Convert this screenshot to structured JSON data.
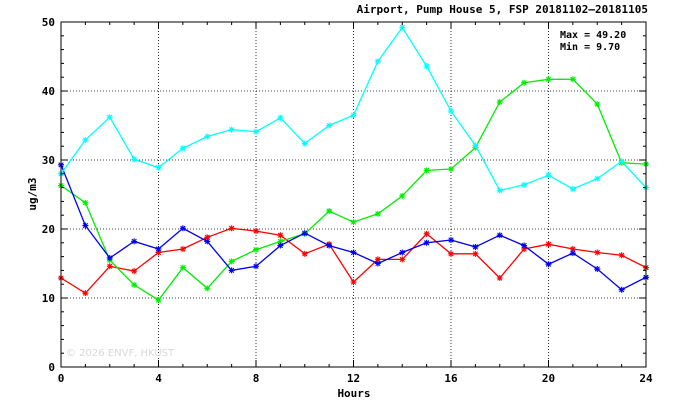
{
  "chart_data": {
    "type": "line",
    "title": "Airport, Pump House 5, FSP 20181102–20181105",
    "xlabel": "Hours",
    "ylabel": "ug/m3",
    "xlim": [
      0,
      24
    ],
    "ylim": [
      0,
      50
    ],
    "xticks": [
      0,
      4,
      8,
      12,
      16,
      20,
      24
    ],
    "yticks": [
      0,
      10,
      20,
      30,
      40,
      50
    ],
    "grid": true,
    "annotations": {
      "max_label": "Max = 49.20",
      "min_label": "Min =  9.70"
    },
    "watermark": "© 2026  ENVF, HKUST",
    "x": [
      0,
      1,
      2,
      3,
      4,
      5,
      6,
      7,
      8,
      9,
      10,
      11,
      12,
      13,
      14,
      15,
      16,
      17,
      18,
      19,
      20,
      21,
      22,
      23,
      24
    ],
    "series": [
      {
        "color": "#ff0000",
        "values": [
          12.9,
          10.7,
          14.6,
          13.9,
          16.6,
          17.1,
          18.8,
          20.1,
          19.7,
          19.1,
          16.4,
          17.8,
          12.3,
          15.6,
          15.6,
          19.3,
          16.4,
          16.4,
          12.9,
          17.1,
          17.8,
          17.1,
          16.6,
          16.2,
          14.4
        ]
      },
      {
        "color": "#00ee00",
        "values": [
          26.3,
          23.8,
          15.5,
          11.9,
          9.7,
          14.4,
          11.4,
          15.3,
          17.0,
          18.2,
          19.3,
          22.6,
          21.0,
          22.2,
          24.8,
          28.5,
          28.7,
          31.8,
          38.4,
          41.2,
          41.7,
          41.7,
          38.1,
          29.6,
          29.4
        ]
      },
      {
        "color": "#0000ee",
        "values": [
          29.3,
          20.5,
          15.8,
          18.2,
          17.1,
          20.1,
          18.2,
          14.0,
          14.6,
          17.6,
          19.4,
          17.6,
          16.6,
          15.0,
          16.6,
          18.0,
          18.4,
          17.4,
          19.1,
          17.6,
          14.9,
          16.5,
          14.2,
          11.2,
          13.0
        ]
      },
      {
        "color": "#00ffff",
        "values": [
          28.0,
          32.9,
          36.2,
          30.1,
          28.9,
          31.7,
          33.4,
          34.4,
          34.1,
          36.1,
          32.4,
          35.0,
          36.5,
          44.3,
          49.2,
          43.6,
          37.1,
          32.1,
          25.6,
          26.4,
          27.8,
          25.8,
          27.3,
          29.8,
          26.0
        ]
      }
    ]
  }
}
